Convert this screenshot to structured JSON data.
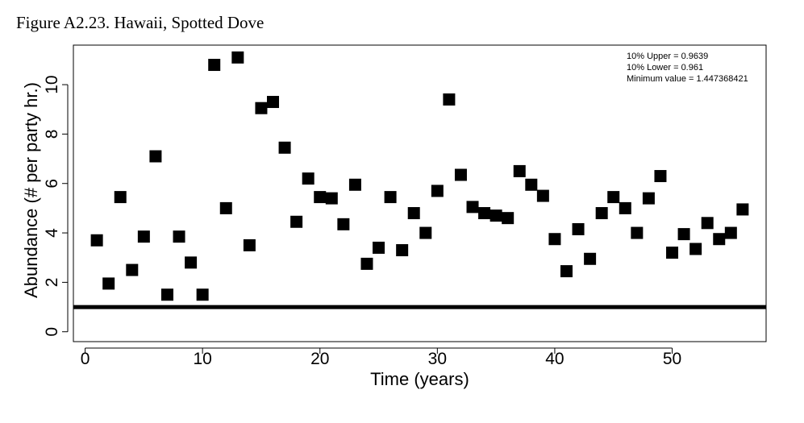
{
  "figure": {
    "title": "Figure A2.23. Hawaii, Spotted Dove"
  },
  "chart_data": {
    "type": "scatter",
    "title": "",
    "xlabel": "Time (years)",
    "ylabel": "Abundance (# per party hr.)",
    "xlim": [
      -1,
      58
    ],
    "ylim": [
      -0.4,
      11.6
    ],
    "xticks": [
      0,
      10,
      20,
      30,
      40,
      50
    ],
    "yticks": [
      0,
      2,
      4,
      6,
      8,
      10
    ],
    "grid": false,
    "marker": "square",
    "marker_color": "#000000",
    "reference_line": {
      "y": 1.0,
      "color": "#000000"
    },
    "annotations": [
      "10% Upper =  0.9639",
      "10% Lower =  0.961",
      "Minimum value =  1.447368421"
    ],
    "series": [
      {
        "x": [
          1,
          2,
          3,
          4,
          5,
          6,
          7,
          8,
          9,
          10,
          11,
          12,
          13,
          14,
          15,
          16,
          17,
          18,
          19,
          20,
          21,
          22,
          23,
          24,
          25,
          26,
          27,
          28,
          29,
          30,
          31,
          32,
          33,
          34,
          35,
          36,
          37,
          38,
          39,
          40,
          41,
          42,
          43,
          44,
          45,
          46,
          47,
          48,
          49,
          50,
          51,
          52,
          53,
          54,
          55,
          56
        ],
        "y": [
          3.7,
          1.95,
          5.45,
          2.5,
          3.85,
          7.1,
          1.5,
          3.85,
          2.8,
          1.5,
          10.8,
          5.0,
          11.1,
          3.5,
          9.05,
          9.3,
          7.45,
          4.45,
          6.2,
          5.45,
          5.4,
          4.35,
          5.95,
          2.75,
          3.4,
          5.45,
          3.3,
          4.8,
          4.0,
          5.7,
          9.4,
          6.35,
          5.05,
          4.8,
          4.7,
          4.6,
          6.5,
          5.95,
          5.5,
          3.75,
          2.45,
          4.15,
          2.95,
          4.8,
          5.45,
          5.0,
          4.0,
          5.4,
          6.3,
          3.2,
          3.95,
          3.35,
          4.4,
          3.75,
          4.0,
          4.95
        ]
      }
    ]
  }
}
